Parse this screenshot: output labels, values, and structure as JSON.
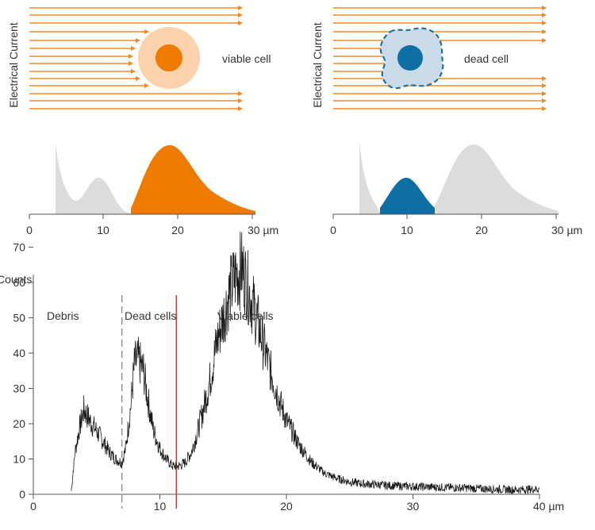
{
  "colors": {
    "arrow": "#f08a24",
    "viable_outer": "#fbd2ac",
    "viable_core": "#ee7a00",
    "dead_outer": "#c9dbe9",
    "dead_core": "#0d6fa3",
    "dead_outline": "#1f6f97",
    "gray_fill": "#dcdcdc",
    "axis": "#555555",
    "dashed_line": "#8a8aa6",
    "red_line": "#cc3333",
    "histogram": "#1a1a1a"
  },
  "panels": [
    {
      "current_label": "Electrical Current",
      "cell_label": "viable cell",
      "axis": {
        "ticks": [
          "0",
          "10",
          "20",
          "30 µm"
        ]
      }
    },
    {
      "current_label": "Electrical Current",
      "cell_label": "dead cell",
      "axis": {
        "ticks": [
          "0",
          "10",
          "20",
          "30 µm"
        ]
      }
    }
  ],
  "chart_data": {
    "type": "line",
    "title": "",
    "ylabel": "Counts",
    "xlabel": "",
    "x_unit": "µm",
    "xlim": [
      0,
      40
    ],
    "ylim": [
      0,
      75
    ],
    "x_ticks": [
      "0",
      "10",
      "20",
      "30",
      "40 µm"
    ],
    "y_ticks": [
      "0",
      "10",
      "20",
      "30",
      "40",
      "50",
      "60",
      "70"
    ],
    "region_labels": [
      "Debris",
      "Dead cells",
      "Viable cells"
    ],
    "gates": [
      {
        "x": 7.0,
        "style": "dashed"
      },
      {
        "x": 11.3,
        "style": "solid"
      }
    ],
    "series": [
      {
        "x": [
          3.0,
          3.3,
          3.6,
          4.0,
          4.3,
          4.6,
          5.0,
          5.5,
          6.0,
          6.5,
          7.0,
          7.3,
          7.7,
          8.0,
          8.3,
          8.7,
          9.0,
          9.5,
          10.0,
          10.5,
          11.0,
          11.5,
          12.0,
          12.5,
          13.0,
          13.5,
          14.0,
          14.5,
          15.0,
          15.5,
          16.0,
          16.5,
          17.0,
          17.5,
          18.0,
          18.5,
          19.0,
          19.5,
          20.0,
          21.0,
          22.0,
          23.0,
          24.0,
          25.0,
          26.0,
          28.0,
          30.0,
          32.0,
          34.0,
          36.0,
          38.0,
          40.0
        ],
        "y": [
          1,
          12,
          18,
          24,
          22,
          20,
          18,
          15,
          12,
          10,
          9,
          13,
          25,
          37,
          38,
          35,
          28,
          18,
          13,
          10,
          8,
          8,
          9,
          12,
          18,
          25,
          33,
          43,
          50,
          57,
          62,
          64,
          58,
          52,
          45,
          38,
          32,
          26,
          21,
          14,
          9,
          6,
          4.5,
          3.5,
          3,
          2.5,
          2.2,
          2,
          1.8,
          1.5,
          1.3,
          1.5
        ]
      }
    ]
  }
}
